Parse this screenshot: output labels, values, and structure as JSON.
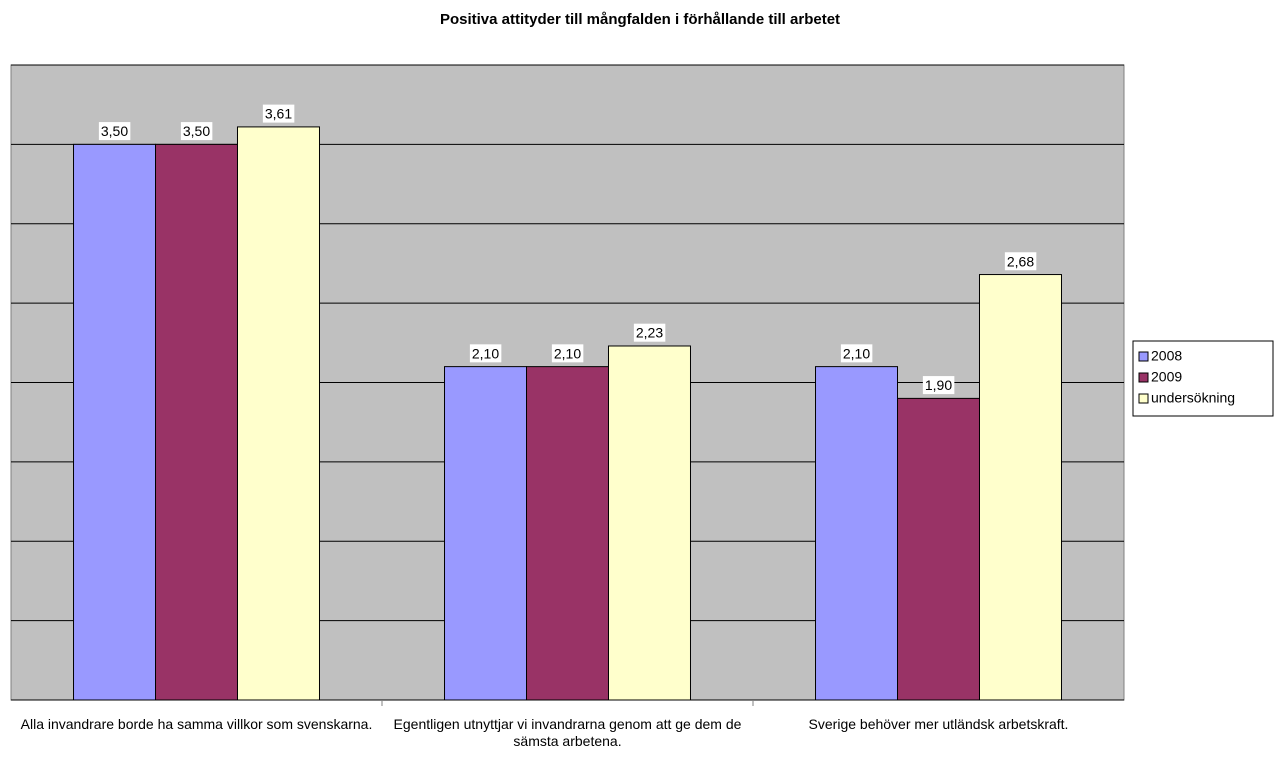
{
  "chart_data": {
    "type": "bar",
    "title": "Positiva attityder till mångfalden i förhållande till arbetet",
    "categories": [
      "Alla invandrare borde ha samma villkor som svenskarna.",
      "Egentligen utnyttjar vi invandrarna genom att ge dem de sämsta arbetena.",
      "Sverige behöver mer utländsk arbetskraft."
    ],
    "series": [
      {
        "name": "2008",
        "color": "#9999ff",
        "values": [
          3.5,
          2.1,
          2.1
        ],
        "value_labels": [
          "3,50",
          "2,10",
          "2,10"
        ]
      },
      {
        "name": "2009",
        "color": "#993366",
        "values": [
          3.5,
          2.1,
          1.9
        ],
        "value_labels": [
          "3,50",
          "2,10",
          "1,90"
        ]
      },
      {
        "name": "undersökning",
        "color": "#ffffcc",
        "values": [
          3.61,
          2.23,
          2.68
        ],
        "value_labels": [
          "3,61",
          "2,23",
          "2,68"
        ]
      }
    ],
    "ylim": [
      0,
      4
    ],
    "yticks": [
      0,
      0.5,
      1,
      1.5,
      2,
      2.5,
      3,
      3.5,
      4
    ],
    "grid": true,
    "legend": "right"
  }
}
